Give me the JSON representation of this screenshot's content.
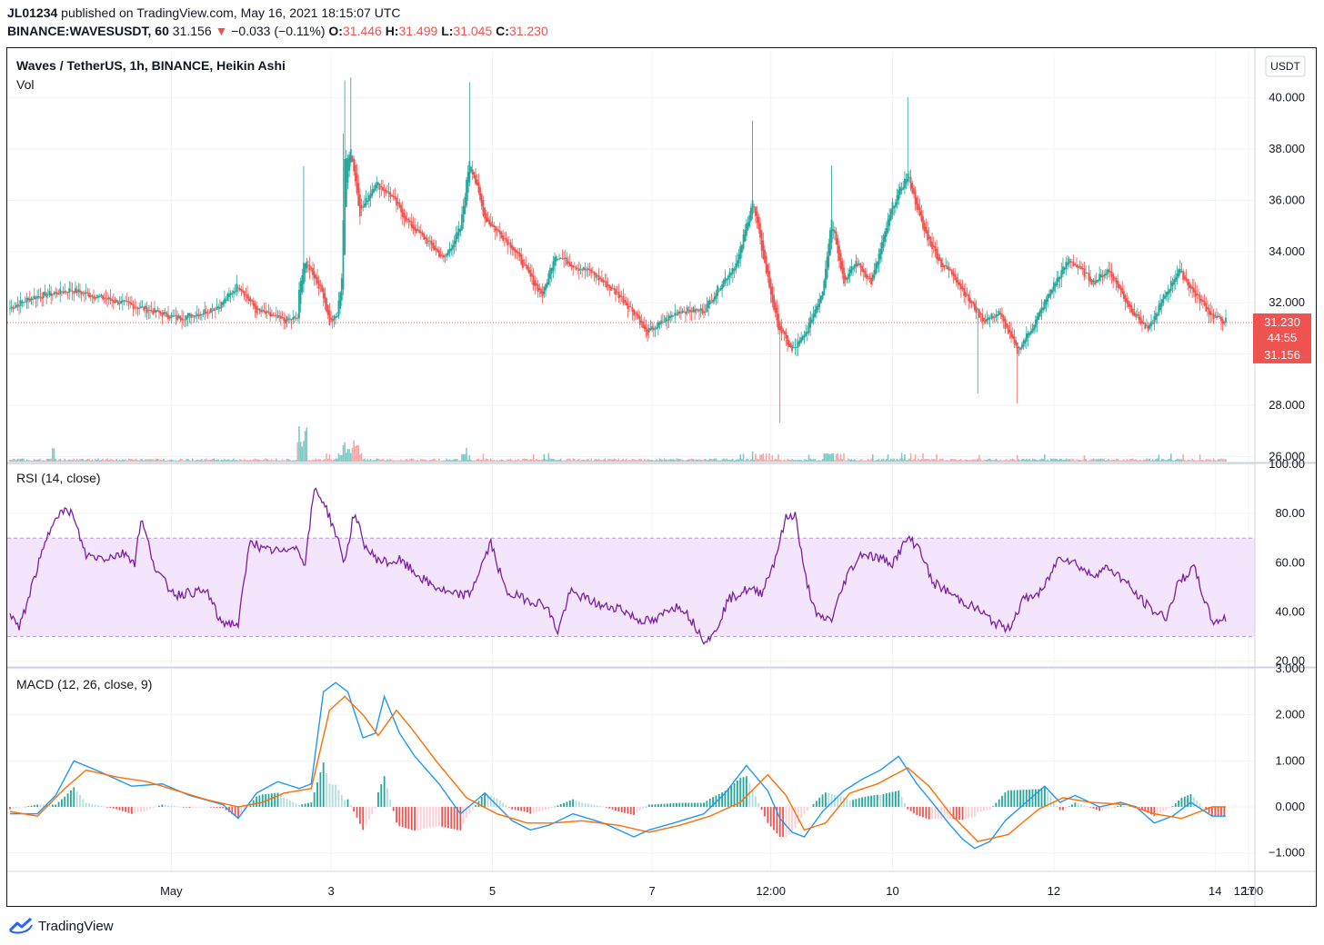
{
  "header": {
    "user": "JL01234",
    "published": "published on TradingView.com, May 16, 2021 18:15:07 UTC",
    "symbol": "BINANCE:WAVESUSDT, 60",
    "last": "31.156",
    "arrow": "▼",
    "change": "−0.033 (−0.11%)",
    "o_label": "O:",
    "o": "31.446",
    "h_label": "H:",
    "h": "31.499",
    "l_label": "L:",
    "l": "31.045",
    "c_label": "C:",
    "c": "31.230"
  },
  "colors": {
    "up": "#26a69a",
    "down": "#ef5350",
    "rsi_line": "#7b1fa2",
    "rsi_band": "#f3e5fb",
    "macd_line": "#2196f3",
    "signal_line": "#ff6d00",
    "hist_up_strong": "#26a69a",
    "hist_up_weak": "#b2dfdb",
    "hist_down_strong": "#ef5350",
    "hist_down_weak": "#ffcdd2"
  },
  "chart_data": [
    {
      "type": "candlestick",
      "title": "Waves / TetherUS, 1h, BINANCE, Heikin Ashi",
      "sub_label": "Vol",
      "currency_button": "USDT",
      "ylim": [
        25.8,
        41.8
      ],
      "y_ticks": [
        "26.000",
        "28.000",
        "30.000",
        "32.000",
        "34.000",
        "36.000",
        "38.000",
        "40.000"
      ],
      "y_tick_values": [
        26,
        28,
        30,
        32,
        34,
        36,
        38,
        40
      ],
      "x_ticks": [
        "May",
        "3",
        "5",
        "7",
        "12:00",
        "10",
        "12",
        "14",
        "12:00",
        "17"
      ],
      "price_line": 31.23,
      "price_labels": [
        "31.230",
        "44:55",
        "31.156"
      ],
      "close_anchors": [
        [
          0,
          31.8
        ],
        [
          14,
          32.2
        ],
        [
          40,
          32.5
        ],
        [
          80,
          31.9
        ],
        [
          110,
          31.4
        ],
        [
          125,
          31.6
        ],
        [
          138,
          31.9
        ],
        [
          150,
          32.7
        ],
        [
          162,
          31.7
        ],
        [
          180,
          31.3
        ],
        [
          189,
          31.4
        ],
        [
          190,
          32.4
        ],
        [
          193,
          33.6
        ],
        [
          198,
          33.3
        ],
        [
          206,
          32.3
        ],
        [
          210,
          31.2
        ],
        [
          215,
          31.5
        ],
        [
          218,
          33.0
        ],
        [
          220,
          37.5
        ],
        [
          224,
          38.0
        ],
        [
          230,
          35.5
        ],
        [
          240,
          36.7
        ],
        [
          250,
          36.2
        ],
        [
          262,
          35.1
        ],
        [
          276,
          34.3
        ],
        [
          285,
          33.7
        ],
        [
          296,
          34.9
        ],
        [
          302,
          37.6
        ],
        [
          312,
          35.3
        ],
        [
          330,
          34.2
        ],
        [
          344,
          32.8
        ],
        [
          350,
          32.3
        ],
        [
          358,
          33.9
        ],
        [
          372,
          33.4
        ],
        [
          382,
          33.2
        ],
        [
          390,
          32.8
        ],
        [
          400,
          32.3
        ],
        [
          412,
          31.5
        ],
        [
          418,
          30.8
        ],
        [
          430,
          31.3
        ],
        [
          440,
          31.7
        ],
        [
          456,
          31.7
        ],
        [
          468,
          32.8
        ],
        [
          478,
          33.6
        ],
        [
          488,
          36.0
        ],
        [
          495,
          33.8
        ],
        [
          504,
          31.2
        ],
        [
          514,
          30.1
        ],
        [
          522,
          30.7
        ],
        [
          534,
          32.5
        ],
        [
          540,
          35.3
        ],
        [
          548,
          32.8
        ],
        [
          556,
          33.6
        ],
        [
          566,
          32.8
        ],
        [
          580,
          35.8
        ],
        [
          590,
          37.0
        ],
        [
          600,
          34.9
        ],
        [
          612,
          33.5
        ],
        [
          620,
          33.1
        ],
        [
          630,
          32.1
        ],
        [
          640,
          31.3
        ],
        [
          650,
          31.6
        ],
        [
          662,
          30.1
        ],
        [
          674,
          31.3
        ],
        [
          684,
          32.5
        ],
        [
          696,
          33.7
        ],
        [
          712,
          32.8
        ],
        [
          722,
          33.3
        ],
        [
          736,
          31.8
        ],
        [
          748,
          30.9
        ],
        [
          758,
          32.2
        ],
        [
          768,
          33.3
        ],
        [
          778,
          32.4
        ],
        [
          790,
          31.5
        ],
        [
          796,
          31.3
        ]
      ],
      "volume_note": "volume histogram along bottom of price pane"
    },
    {
      "type": "line",
      "title": "RSI (14, close)",
      "ylim": [
        18,
        100
      ],
      "y_ticks": [
        "20.00",
        "40.00",
        "60.00",
        "80.00",
        "100.00"
      ],
      "y_tick_values": [
        20,
        40,
        60,
        80,
        100
      ],
      "band": [
        30,
        70
      ],
      "anchors": [
        [
          0,
          40
        ],
        [
          6,
          33
        ],
        [
          18,
          58
        ],
        [
          30,
          80
        ],
        [
          40,
          81
        ],
        [
          50,
          63
        ],
        [
          62,
          62
        ],
        [
          76,
          64
        ],
        [
          82,
          60
        ],
        [
          86,
          78
        ],
        [
          96,
          57
        ],
        [
          104,
          50
        ],
        [
          110,
          47
        ],
        [
          118,
          48
        ],
        [
          130,
          48
        ],
        [
          138,
          36
        ],
        [
          150,
          35
        ],
        [
          158,
          70
        ],
        [
          166,
          65
        ],
        [
          174,
          65
        ],
        [
          180,
          64
        ],
        [
          186,
          68
        ],
        [
          194,
          60
        ],
        [
          200,
          90
        ],
        [
          206,
          85
        ],
        [
          214,
          72
        ],
        [
          220,
          60
        ],
        [
          226,
          80
        ],
        [
          234,
          66
        ],
        [
          240,
          62
        ],
        [
          248,
          60
        ],
        [
          256,
          61
        ],
        [
          262,
          58
        ],
        [
          274,
          52
        ],
        [
          290,
          47
        ],
        [
          302,
          47
        ],
        [
          316,
          68
        ],
        [
          326,
          48
        ],
        [
          340,
          45
        ],
        [
          352,
          43
        ],
        [
          360,
          32
        ],
        [
          368,
          48
        ],
        [
          380,
          45
        ],
        [
          390,
          42
        ],
        [
          400,
          42
        ],
        [
          412,
          37
        ],
        [
          424,
          36
        ],
        [
          434,
          42
        ],
        [
          442,
          42
        ],
        [
          456,
          29
        ],
        [
          462,
          30
        ],
        [
          472,
          45
        ],
        [
          484,
          49
        ],
        [
          494,
          48
        ],
        [
          502,
          60
        ],
        [
          510,
          78
        ],
        [
          516,
          80
        ],
        [
          522,
          56
        ],
        [
          530,
          38
        ],
        [
          540,
          37
        ],
        [
          550,
          55
        ],
        [
          560,
          64
        ],
        [
          570,
          62
        ],
        [
          580,
          60
        ],
        [
          590,
          70
        ],
        [
          598,
          66
        ],
        [
          606,
          52
        ],
        [
          612,
          50
        ],
        [
          624,
          45
        ],
        [
          636,
          41
        ],
        [
          646,
          36
        ],
        [
          656,
          33
        ],
        [
          666,
          45
        ],
        [
          678,
          48
        ],
        [
          690,
          63
        ],
        [
          700,
          60
        ],
        [
          710,
          55
        ],
        [
          722,
          58
        ],
        [
          732,
          53
        ],
        [
          740,
          47
        ],
        [
          752,
          40
        ],
        [
          760,
          38
        ],
        [
          768,
          52
        ],
        [
          778,
          58
        ],
        [
          790,
          36
        ],
        [
          796,
          37
        ]
      ]
    },
    {
      "type": "line",
      "title": "MACD (12, 26, close, 9)",
      "ylim": [
        -1.4,
        3.0
      ],
      "y_ticks": [
        "−1.000",
        "0.000",
        "1.000",
        "2.000",
        "3.000"
      ],
      "y_tick_values": [
        -1,
        0,
        1,
        2,
        3
      ],
      "series": [
        {
          "role": "macd",
          "anchors": [
            [
              0,
              -0.15
            ],
            [
              18,
              -0.15
            ],
            [
              30,
              0.25
            ],
            [
              42,
              1.0
            ],
            [
              60,
              0.75
            ],
            [
              80,
              0.45
            ],
            [
              100,
              0.5
            ],
            [
              118,
              0.25
            ],
            [
              140,
              0.05
            ],
            [
              150,
              -0.25
            ],
            [
              162,
              0.3
            ],
            [
              176,
              0.55
            ],
            [
              190,
              0.4
            ],
            [
              198,
              0.5
            ],
            [
              206,
              2.5
            ],
            [
              214,
              2.7
            ],
            [
              222,
              2.5
            ],
            [
              232,
              1.5
            ],
            [
              240,
              1.6
            ],
            [
              246,
              2.4
            ],
            [
              256,
              1.6
            ],
            [
              266,
              1.1
            ],
            [
              282,
              0.5
            ],
            [
              296,
              -0.15
            ],
            [
              312,
              0.3
            ],
            [
              330,
              -0.3
            ],
            [
              342,
              -0.5
            ],
            [
              354,
              -0.4
            ],
            [
              370,
              -0.15
            ],
            [
              390,
              -0.35
            ],
            [
              410,
              -0.65
            ],
            [
              420,
              -0.5
            ],
            [
              436,
              -0.35
            ],
            [
              456,
              -0.15
            ],
            [
              470,
              0.3
            ],
            [
              484,
              0.9
            ],
            [
              498,
              0.35
            ],
            [
              506,
              -0.25
            ],
            [
              514,
              -0.55
            ],
            [
              522,
              -0.65
            ],
            [
              534,
              -0.1
            ],
            [
              548,
              0.35
            ],
            [
              560,
              0.6
            ],
            [
              572,
              0.8
            ],
            [
              584,
              1.1
            ],
            [
              596,
              0.5
            ],
            [
              606,
              0.1
            ],
            [
              618,
              -0.4
            ],
            [
              626,
              -0.7
            ],
            [
              634,
              -0.9
            ],
            [
              644,
              -0.75
            ],
            [
              654,
              -0.3
            ],
            [
              666,
              0.05
            ],
            [
              680,
              0.45
            ],
            [
              690,
              0.1
            ],
            [
              700,
              0.25
            ],
            [
              716,
              0.0
            ],
            [
              730,
              0.1
            ],
            [
              740,
              0.0
            ],
            [
              752,
              -0.35
            ],
            [
              764,
              -0.2
            ],
            [
              776,
              0.1
            ],
            [
              790,
              -0.2
            ]
          ]
        },
        {
          "role": "signal",
          "anchors": [
            [
              0,
              -0.1
            ],
            [
              18,
              -0.2
            ],
            [
              36,
              0.4
            ],
            [
              50,
              0.8
            ],
            [
              70,
              0.65
            ],
            [
              90,
              0.55
            ],
            [
              110,
              0.35
            ],
            [
              130,
              0.15
            ],
            [
              150,
              0.0
            ],
            [
              166,
              0.1
            ],
            [
              180,
              0.3
            ],
            [
              198,
              0.4
            ],
            [
              210,
              2.1
            ],
            [
              220,
              2.4
            ],
            [
              232,
              2.0
            ],
            [
              242,
              1.55
            ],
            [
              254,
              2.1
            ],
            [
              264,
              1.7
            ],
            [
              280,
              1.0
            ],
            [
              300,
              0.2
            ],
            [
              320,
              -0.15
            ],
            [
              340,
              -0.35
            ],
            [
              356,
              -0.35
            ],
            [
              376,
              -0.3
            ],
            [
              400,
              -0.4
            ],
            [
              420,
              -0.55
            ],
            [
              440,
              -0.4
            ],
            [
              460,
              -0.2
            ],
            [
              480,
              0.1
            ],
            [
              498,
              0.7
            ],
            [
              510,
              0.25
            ],
            [
              522,
              -0.5
            ],
            [
              536,
              -0.35
            ],
            [
              552,
              0.3
            ],
            [
              570,
              0.5
            ],
            [
              590,
              0.85
            ],
            [
              604,
              0.45
            ],
            [
              618,
              -0.15
            ],
            [
              636,
              -0.75
            ],
            [
              656,
              -0.6
            ],
            [
              676,
              -0.05
            ],
            [
              692,
              0.2
            ],
            [
              710,
              0.1
            ],
            [
              734,
              0.05
            ],
            [
              752,
              -0.15
            ],
            [
              770,
              -0.25
            ],
            [
              790,
              0.0
            ]
          ]
        }
      ],
      "histogram": "difference between macd and signal"
    }
  ],
  "footer": {
    "brand": "TradingView"
  }
}
